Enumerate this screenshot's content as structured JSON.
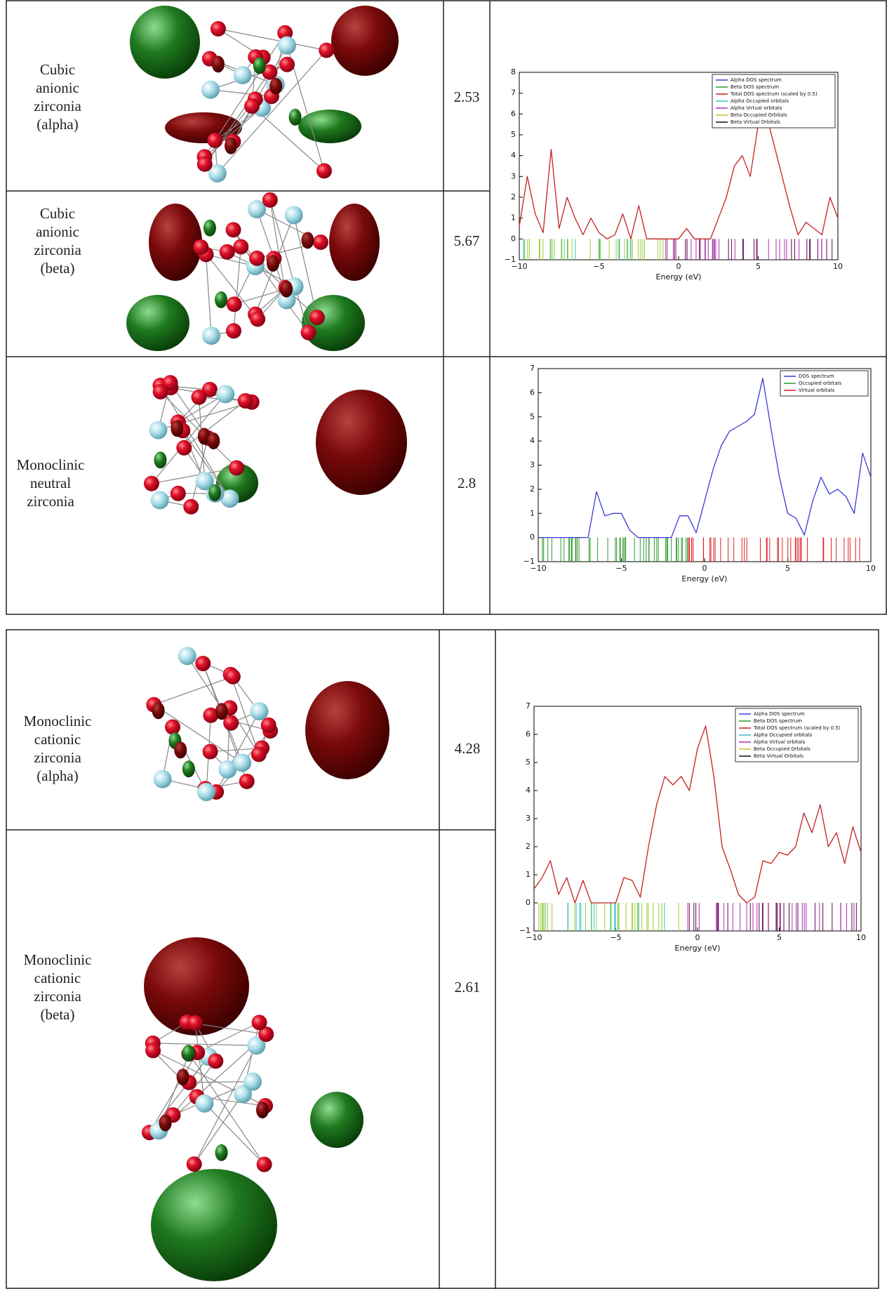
{
  "tables": [
    {
      "rows": [
        {
          "label_lines": [
            "Cubic",
            "anionic",
            "zirconia",
            "(alpha)"
          ],
          "value": 2.53
        },
        {
          "label_lines": [
            "Cubic",
            "anionic",
            "zirconia",
            "(beta)"
          ],
          "value": 5.67
        },
        {
          "label_lines": [
            "Monoclinic",
            "neutral",
            "zirconia"
          ],
          "value": 2.8
        }
      ],
      "plots": [
        {
          "type": "line",
          "xlabel": "Energy (eV)",
          "xlim": [
            -10,
            10
          ],
          "ylim": [
            -1,
            8
          ],
          "xticks": [
            {
              "value": -10,
              "label": "−10"
            },
            {
              "value": -5,
              "label": "−5"
            },
            0,
            5,
            10
          ],
          "yticks": [
            {
              "value": -1,
              "label": "−1"
            },
            0,
            1,
            2,
            3,
            4,
            5,
            6,
            7,
            8
          ],
          "x": [
            -10,
            -9.5,
            -9,
            -8.5,
            -8,
            -7.5,
            -7,
            -6.5,
            -6,
            -5.5,
            -5,
            -4.5,
            -4,
            -3.5,
            -3,
            -2.5,
            -2,
            -1.5,
            -1,
            -0.5,
            0,
            0.5,
            1,
            1.5,
            2,
            2.5,
            3,
            3.5,
            4,
            4.5,
            5,
            5.5,
            6,
            6.5,
            7,
            7.5,
            8,
            8.5,
            9,
            9.5,
            10
          ],
          "series": [
            {
              "name": "Alpha DOS spectrum",
              "color": "#3b3bd6"
            },
            {
              "name": "Beta DOS spectrum",
              "color": "#2f9a2f"
            },
            {
              "name": "Total DOS spectrum (scaled by 0.5)",
              "color": "#c42020",
              "values": [
                0.6,
                3.0,
                1.2,
                0.3,
                4.3,
                0.5,
                2.0,
                1.0,
                0.2,
                1.0,
                0.3,
                0,
                0.2,
                1.2,
                0,
                1.6,
                0,
                0,
                0,
                0,
                0,
                0.5,
                0,
                0,
                0,
                1.0,
                2.0,
                3.5,
                4.0,
                3.0,
                5.5,
                6.0,
                4.5,
                3.0,
                1.5,
                0.2,
                0.8,
                0.5,
                0.2,
                2.0,
                1.0
              ]
            },
            {
              "name": "Alpha Occupied orbitals",
              "color": "#35c0c8"
            },
            {
              "name": "Alpha Virtual orbitals",
              "color": "#b030b0"
            },
            {
              "name": "Beta Occupied Orbitals",
              "color": "#d0c020"
            },
            {
              "name": "Beta Virtual Orbitals",
              "color": "#111111"
            }
          ]
        },
        {
          "type": "line",
          "xlabel": "Energy (eV)",
          "xlim": [
            -10,
            10
          ],
          "ylim": [
            -1,
            7
          ],
          "xticks": [
            {
              "value": -10,
              "label": "−10"
            },
            {
              "value": -5,
              "label": "−5"
            },
            0,
            5,
            10
          ],
          "yticks": [
            {
              "value": -1,
              "label": "−1"
            },
            0,
            1,
            2,
            3,
            4,
            5,
            6,
            7
          ],
          "x": [
            -10,
            -9.5,
            -9,
            -8.5,
            -8,
            -7.5,
            -7,
            -6.5,
            -6,
            -5.5,
            -5,
            -4.5,
            -4,
            -3.5,
            -3,
            -2.5,
            -2,
            -1.5,
            -1,
            -0.5,
            0,
            0.5,
            1,
            1.5,
            2,
            2.5,
            3,
            3.5,
            4,
            4.5,
            5,
            5.5,
            6,
            6.5,
            7,
            7.5,
            8,
            8.5,
            9,
            9.5,
            10
          ],
          "series": [
            {
              "name": "DOS spectrum",
              "color": "#3b3bd6",
              "values": [
                0,
                0,
                0,
                0,
                0,
                0,
                0,
                1.9,
                0.9,
                1.0,
                1.0,
                0.3,
                0,
                0,
                0,
                0,
                0,
                0.9,
                0.9,
                0.2,
                1.5,
                2.8,
                3.8,
                4.4,
                4.6,
                4.8,
                5.1,
                6.6,
                4.5,
                2.5,
                1.0,
                0.8,
                0.1,
                1.5,
                2.5,
                1.8,
                2.0,
                1.7,
                1.0,
                3.5,
                2.5
              ]
            },
            {
              "name": "Occupied orbitals",
              "color": "#2f9a2f"
            },
            {
              "name": "Virtual orbitals",
              "color": "#e02020"
            }
          ]
        }
      ]
    },
    {
      "rows": [
        {
          "label_lines": [
            "Monoclinic",
            "cationic",
            "zirconia",
            "(alpha)"
          ],
          "value": 4.28
        },
        {
          "label_lines": [
            "Monoclinic",
            "cationic",
            "zirconia",
            "(beta)"
          ],
          "value": 2.61
        }
      ],
      "plots": [
        {
          "type": "line",
          "xlabel": "Energy (eV)",
          "xlim": [
            -10,
            10
          ],
          "ylim": [
            -1,
            7
          ],
          "xticks": [
            {
              "value": -10,
              "label": "−10"
            },
            {
              "value": -5,
              "label": "−5"
            },
            0,
            5,
            10
          ],
          "yticks": [
            {
              "value": -1,
              "label": "−1"
            },
            0,
            1,
            2,
            3,
            4,
            5,
            6,
            7
          ],
          "x": [
            -10,
            -9.5,
            -9,
            -8.5,
            -8,
            -7.5,
            -7,
            -6.5,
            -6,
            -5.5,
            -5,
            -4.5,
            -4,
            -3.5,
            -3,
            -2.5,
            -2,
            -1.5,
            -1,
            -0.5,
            0,
            0.5,
            1,
            1.5,
            2,
            2.5,
            3,
            3.5,
            4,
            4.5,
            5,
            5.5,
            6,
            6.5,
            7,
            7.5,
            8,
            8.5,
            9,
            9.5,
            10
          ],
          "series": [
            {
              "name": "Alpha DOS spectrum",
              "color": "#3b3bd6"
            },
            {
              "name": "Beta DOS spectrum",
              "color": "#2f9a2f"
            },
            {
              "name": "Total DOS spectrum (scaled by 0.5)",
              "color": "#c42020",
              "values": [
                0.5,
                0.9,
                1.5,
                0.3,
                0.9,
                0,
                0.8,
                0,
                0,
                0,
                0,
                0.9,
                0.8,
                0.2,
                2.0,
                3.5,
                4.5,
                4.2,
                4.5,
                4.0,
                5.5,
                6.3,
                4.5,
                2.0,
                1.2,
                0.3,
                0,
                0.2,
                1.5,
                1.4,
                1.8,
                1.7,
                2.0,
                3.2,
                2.5,
                3.5,
                2.0,
                2.5,
                1.4,
                2.7,
                1.8
              ]
            },
            {
              "name": "Alpha Occupied orbitals",
              "color": "#35c0c8"
            },
            {
              "name": "Alpha Virtual orbitals",
              "color": "#b030b0"
            },
            {
              "name": "Beta Occupied Orbitals",
              "color": "#d0c020"
            },
            {
              "name": "Beta Virtual Orbitals",
              "color": "#111111"
            }
          ]
        }
      ]
    }
  ]
}
